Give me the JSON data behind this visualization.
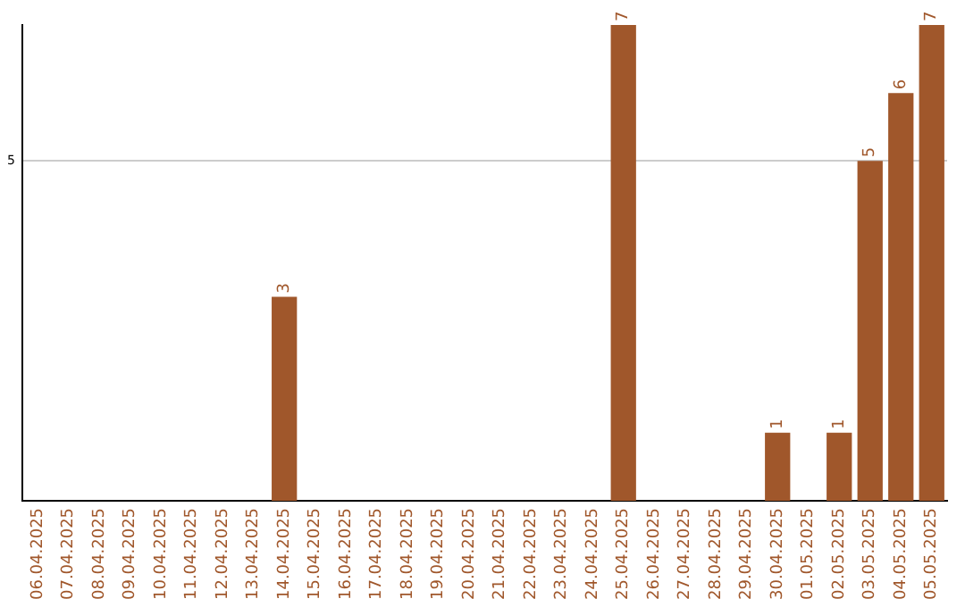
{
  "chart_data": {
    "type": "bar",
    "categories": [
      "06.04.2025",
      "07.04.2025",
      "08.04.2025",
      "09.04.2025",
      "10.04.2025",
      "11.04.2025",
      "12.04.2025",
      "13.04.2025",
      "14.04.2025",
      "15.04.2025",
      "16.04.2025",
      "17.04.2025",
      "18.04.2025",
      "19.04.2025",
      "20.04.2025",
      "21.04.2025",
      "22.04.2025",
      "23.04.2025",
      "24.04.2025",
      "25.04.2025",
      "26.04.2025",
      "27.04.2025",
      "28.04.2025",
      "29.04.2025",
      "30.04.2025",
      "01.05.2025",
      "02.05.2025",
      "03.05.2025",
      "04.05.2025",
      "05.05.2025"
    ],
    "values": [
      0,
      0,
      0,
      0,
      0,
      0,
      0,
      0,
      3,
      0,
      0,
      0,
      0,
      0,
      0,
      0,
      0,
      0,
      0,
      7,
      0,
      0,
      0,
      0,
      1,
      0,
      1,
      5,
      6,
      7
    ],
    "value_labels": [
      null,
      null,
      null,
      null,
      null,
      null,
      null,
      null,
      "3",
      null,
      null,
      null,
      null,
      null,
      null,
      null,
      null,
      null,
      null,
      "7",
      null,
      null,
      null,
      null,
      "1",
      null,
      "1",
      "5",
      "6",
      "7"
    ],
    "color": "#a0572b",
    "ylim": [
      0,
      7
    ],
    "yticks": [
      5
    ],
    "grid": "y"
  }
}
